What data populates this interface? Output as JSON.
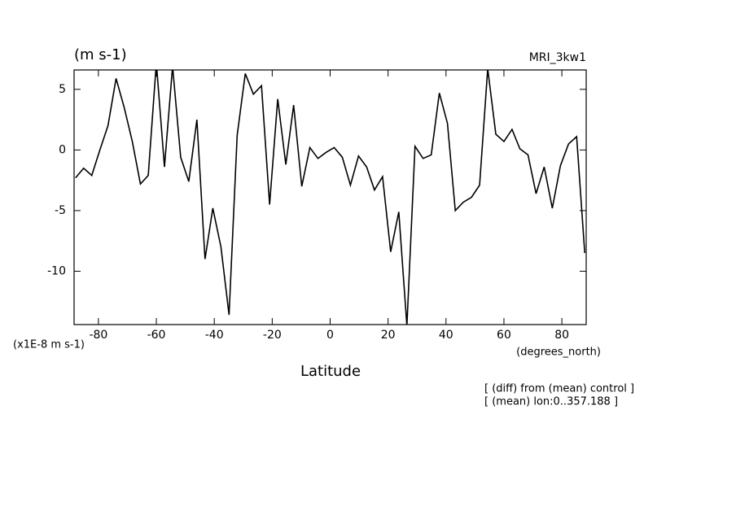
{
  "chart_data": {
    "type": "line",
    "title": "(m s-1)",
    "subtitle": "MRI_3kw1",
    "scale_label": "(x1E-8 m s-1)",
    "x_unit_label": "(degrees_north)",
    "x_label": "Latitude",
    "annotations": [
      "[ (diff) from (mean) control ]",
      "[ (mean) lon:0..357.188 ]"
    ],
    "x": [
      -87.9,
      -85.1,
      -82.3,
      -79.5,
      -76.7,
      -73.9,
      -71.1,
      -68.3,
      -65.5,
      -62.8,
      -60.0,
      -57.2,
      -54.4,
      -51.6,
      -48.8,
      -46.0,
      -43.2,
      -40.5,
      -37.7,
      -34.9,
      -32.1,
      -29.3,
      -26.5,
      -23.7,
      -20.9,
      -18.1,
      -15.3,
      -12.6,
      -9.8,
      -7.0,
      -4.2,
      -1.4,
      1.4,
      4.2,
      7.0,
      9.8,
      12.6,
      15.3,
      18.1,
      20.9,
      23.7,
      26.5,
      29.3,
      32.1,
      34.9,
      37.7,
      40.5,
      43.2,
      46.0,
      48.8,
      51.6,
      54.4,
      57.2,
      60.0,
      62.8,
      65.5,
      68.3,
      71.1,
      73.9,
      76.7,
      79.5,
      82.3,
      85.1,
      87.9
    ],
    "series": [
      {
        "name": "MRI_3kw1",
        "color": "#000000",
        "values": [
          -2.3,
          -1.5,
          -2.1,
          0.0,
          2.0,
          5.9,
          3.5,
          0.7,
          -2.8,
          -2.1,
          7.2,
          -1.4,
          6.9,
          -0.6,
          -2.6,
          2.5,
          -9.0,
          -4.8,
          -8.0,
          -13.6,
          1.2,
          6.3,
          4.6,
          5.3,
          -4.5,
          4.2,
          -1.2,
          3.7,
          -3.0,
          0.2,
          -0.7,
          -0.2,
          0.2,
          -0.6,
          -2.9,
          -0.5,
          -1.4,
          -3.3,
          -2.2,
          -8.4,
          -5.1,
          -14.5,
          0.3,
          -0.7,
          -0.4,
          4.7,
          2.2,
          -5.0,
          -4.3,
          -3.9,
          -2.9,
          6.7,
          1.3,
          0.7,
          1.7,
          0.1,
          -0.4,
          -3.6,
          -1.4,
          -4.8,
          -1.3,
          0.5,
          1.1,
          -8.5
        ]
      }
    ],
    "xlim": [
      -88.4,
      88.4
    ],
    "xticks": [
      -80,
      -60,
      -40,
      -20,
      0,
      20,
      40,
      60,
      80
    ],
    "ylim": [
      -14.4,
      6.6
    ],
    "yticks": [
      -10,
      -5,
      0,
      5
    ],
    "grid": false
  }
}
